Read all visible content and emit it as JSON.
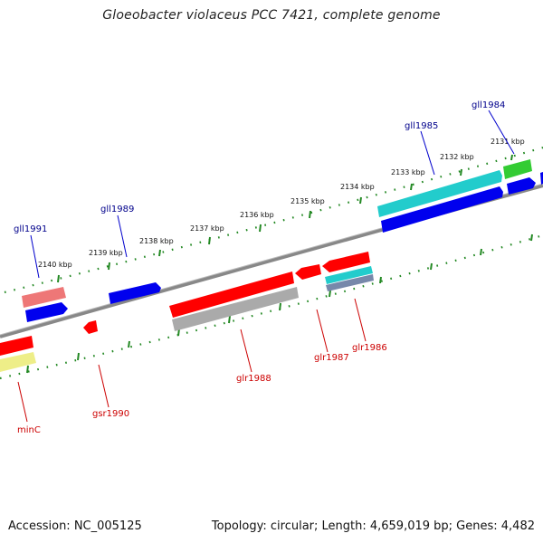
{
  "title": "Gloeobacter violaceus PCC 7421, complete genome",
  "footer": {
    "accession": "Accession: NC_005125",
    "summary": "Topology: circular; Length: 4,659,019 bp; Genes: 4,482"
  },
  "colors": {
    "backbone": "#888888",
    "tick": "#228822",
    "forward_label": "#00008b",
    "reverse_label": "#cc0000",
    "red": "#ff0000",
    "blue": "#0000ee",
    "cyan": "#22cccc",
    "green": "#33cc33",
    "pink": "#ee7777",
    "gray": "#aaaaaa",
    "yellow": "#eeee88",
    "slate": "#7788aa"
  },
  "kbp_labels": [
    {
      "text": "2131 kbp"
    },
    {
      "text": "2132 kbp"
    },
    {
      "text": "2133 kbp"
    },
    {
      "text": "2134 kbp"
    },
    {
      "text": "2135 kbp"
    },
    {
      "text": "2136 kbp"
    },
    {
      "text": "2137 kbp"
    },
    {
      "text": "2138 kbp"
    },
    {
      "text": "2139 kbp"
    },
    {
      "text": "2140 kbp"
    }
  ],
  "gene_labels": {
    "forward": [
      "gll1984",
      "gll1985",
      "gll1989",
      "gll1991"
    ],
    "reverse": [
      "glr1986",
      "glr1987",
      "glr1988",
      "gsr1990",
      "minC"
    ]
  }
}
